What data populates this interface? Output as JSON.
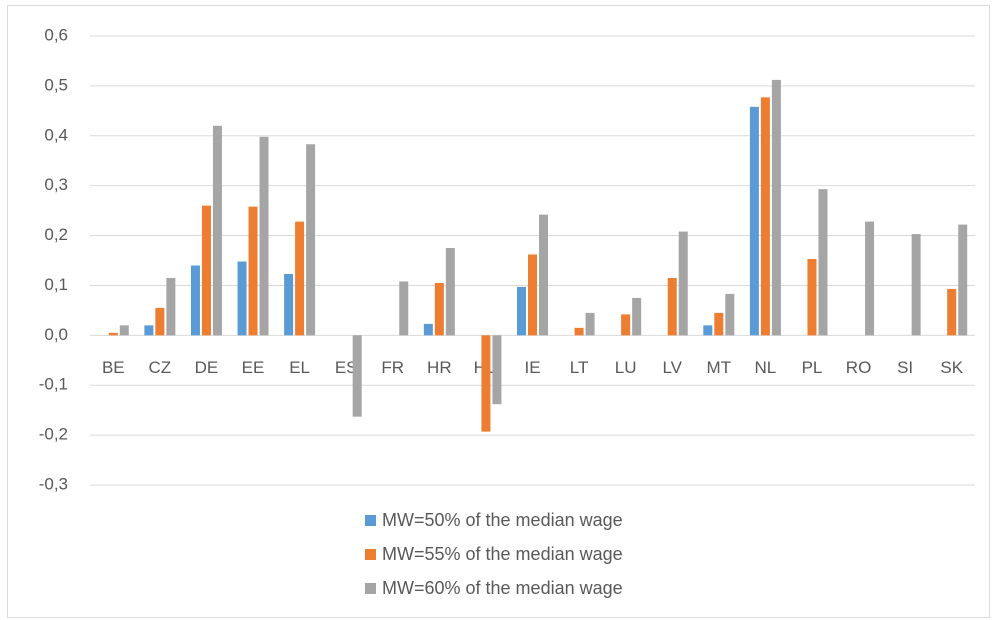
{
  "chart_data": {
    "type": "bar",
    "categories": [
      "BE",
      "CZ",
      "DE",
      "EE",
      "EL",
      "ES",
      "FR",
      "HR",
      "HU",
      "IE",
      "LT",
      "LU",
      "LV",
      "MT",
      "NL",
      "PL",
      "RO",
      "SI",
      "SK"
    ],
    "series": [
      {
        "name": "MW=50% of the median wage",
        "color": "#5b9bd5",
        "values": [
          null,
          0.02,
          0.14,
          0.148,
          0.123,
          null,
          null,
          0.023,
          null,
          0.097,
          null,
          null,
          null,
          0.02,
          0.458,
          null,
          null,
          null,
          null
        ]
      },
      {
        "name": "MW=55% of the median wage",
        "color": "#ed7d31",
        "values": [
          0.005,
          0.055,
          0.26,
          0.258,
          0.228,
          null,
          null,
          0.105,
          -0.193,
          0.162,
          0.015,
          0.042,
          0.115,
          0.045,
          0.477,
          0.153,
          null,
          null,
          0.093
        ]
      },
      {
        "name": "MW=60% of the median wage",
        "color": "#a5a5a5",
        "values": [
          0.02,
          0.115,
          0.42,
          0.398,
          0.383,
          -0.163,
          0.108,
          0.175,
          -0.138,
          0.242,
          0.045,
          0.075,
          0.208,
          0.083,
          0.512,
          0.293,
          0.228,
          0.203,
          0.222
        ]
      }
    ],
    "ylim": [
      -0.3,
      0.6
    ],
    "yticks": [
      {
        "value": -0.3,
        "label": "-0,3"
      },
      {
        "value": -0.2,
        "label": "-0,2"
      },
      {
        "value": -0.1,
        "label": "-0,1"
      },
      {
        "value": 0,
        "label": "0,0"
      },
      {
        "value": 0.1,
        "label": "0,1"
      },
      {
        "value": 0.2,
        "label": "0,2"
      },
      {
        "value": 0.3,
        "label": "0,3"
      },
      {
        "value": 0.4,
        "label": "0,4"
      },
      {
        "value": 0.5,
        "label": "0,5"
      },
      {
        "value": 0.6,
        "label": "0,6"
      }
    ],
    "grid": true
  }
}
